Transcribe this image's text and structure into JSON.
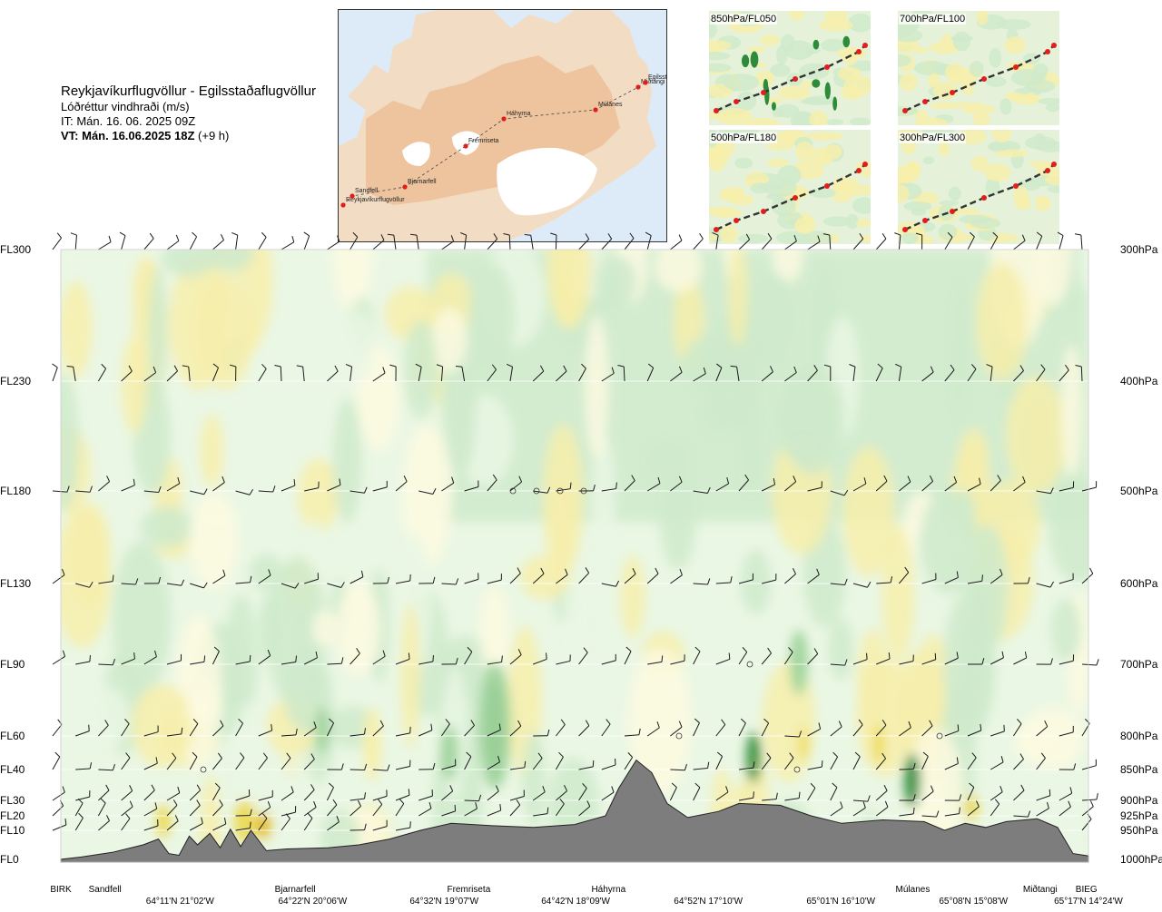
{
  "header": {
    "route": "Reykjavíkurflugvöllur - Egilsstaðaflugvöllur",
    "variable": "Lóðréttur vindhraði (m/s)",
    "issue_time": "IT: Mán. 16. 06. 2025 09Z",
    "valid_time": "VT: Mán. 16.06.2025 18Z",
    "lead": "(+9 h)"
  },
  "route_map": {
    "waypoints": [
      "Reykjavíkurflugvöllur",
      "Sandfell",
      "Bjarnarfell",
      "Fremriseta",
      "Háhyrna",
      "Múlanes",
      "Miðtangi",
      "Egilsstaðir"
    ]
  },
  "thumbnails": [
    {
      "label": "850hPa/FL050"
    },
    {
      "label": "700hPa/FL100"
    },
    {
      "label": "500hPa/FL180"
    },
    {
      "label": "300hPa/FL300"
    }
  ],
  "colors": {
    "terrain": "#7d7d7d",
    "downdraft_weak": "#fdfae0",
    "downdraft_mid": "#f7efaa",
    "downdraft_strong": "#ecd84f",
    "downdraft_max": "#e3b51f",
    "updraft_weak": "#eaf7e4",
    "updraft_mid": "#cfeacb",
    "updraft_strong": "#9fd39c",
    "updraft_max": "#2e8b3a",
    "barb": "#1a1a1a"
  },
  "chart_data": {
    "type": "heatmap",
    "title": "Lóðréttur vindhraði (m/s)",
    "xlabel": "",
    "ylabel": "",
    "left_axis_ticks": [
      {
        "label": "FL300",
        "hpa": 300
      },
      {
        "label": "FL230",
        "hpa": 400
      },
      {
        "label": "FL180",
        "hpa": 500
      },
      {
        "label": "FL130",
        "hpa": 600
      },
      {
        "label": "FL90",
        "hpa": 700
      },
      {
        "label": "FL60",
        "hpa": 800
      },
      {
        "label": "FL40",
        "hpa": 850
      },
      {
        "label": "FL30",
        "hpa": 900
      },
      {
        "label": "FL20",
        "hpa": 925
      },
      {
        "label": "FL10",
        "hpa": 950
      },
      {
        "label": "FL0",
        "hpa": 1000
      }
    ],
    "right_axis_ticks": [
      "300hPa",
      "400hPa",
      "500hPa",
      "600hPa",
      "700hPa",
      "800hPa",
      "850hPa",
      "900hPa",
      "925hPa",
      "950hPa",
      "1000hPa"
    ],
    "x_range": [
      0,
      1
    ],
    "stations": [
      {
        "name": "BIRK",
        "x": 0.0
      },
      {
        "name": "Sandfell",
        "x": 0.043
      },
      {
        "name": "Bjarnarfell",
        "x": 0.228
      },
      {
        "name": "Fremriseta",
        "x": 0.397
      },
      {
        "name": "Háhyrna",
        "x": 0.533
      },
      {
        "name": "Múlanes",
        "x": 0.829
      },
      {
        "name": "Miðtangi",
        "x": 0.953
      },
      {
        "name": "BIEG",
        "x": 0.998
      }
    ],
    "coordinates": [
      {
        "label": "64°11'N 21°02'W",
        "x": 0.116
      },
      {
        "label": "64°22'N 20°06'W",
        "x": 0.245
      },
      {
        "label": "64°32'N 19°07'W",
        "x": 0.373
      },
      {
        "label": "64°42'N 18°09'W",
        "x": 0.501
      },
      {
        "label": "64°52'N 17°10'W",
        "x": 0.63
      },
      {
        "label": "65°01'N 16°10'W",
        "x": 0.759
      },
      {
        "label": "65°08'N 15°08'W",
        "x": 0.888
      },
      {
        "label": "65°17'N 14°24'W",
        "x": 1.0
      }
    ],
    "terrain_hpa": [
      {
        "x": 0.0,
        "hpa": 1000
      },
      {
        "x": 0.02,
        "hpa": 996
      },
      {
        "x": 0.05,
        "hpa": 988
      },
      {
        "x": 0.08,
        "hpa": 975
      },
      {
        "x": 0.095,
        "hpa": 965
      },
      {
        "x": 0.105,
        "hpa": 990
      },
      {
        "x": 0.115,
        "hpa": 993
      },
      {
        "x": 0.125,
        "hpa": 960
      },
      {
        "x": 0.133,
        "hpa": 975
      },
      {
        "x": 0.145,
        "hpa": 955
      },
      {
        "x": 0.155,
        "hpa": 980
      },
      {
        "x": 0.165,
        "hpa": 948
      },
      {
        "x": 0.175,
        "hpa": 978
      },
      {
        "x": 0.185,
        "hpa": 950
      },
      {
        "x": 0.2,
        "hpa": 985
      },
      {
        "x": 0.22,
        "hpa": 982
      },
      {
        "x": 0.26,
        "hpa": 980
      },
      {
        "x": 0.29,
        "hpa": 975
      },
      {
        "x": 0.32,
        "hpa": 965
      },
      {
        "x": 0.35,
        "hpa": 950
      },
      {
        "x": 0.38,
        "hpa": 938
      },
      {
        "x": 0.42,
        "hpa": 942
      },
      {
        "x": 0.46,
        "hpa": 945
      },
      {
        "x": 0.5,
        "hpa": 940
      },
      {
        "x": 0.53,
        "hpa": 925
      },
      {
        "x": 0.543,
        "hpa": 880
      },
      {
        "x": 0.56,
        "hpa": 836
      },
      {
        "x": 0.575,
        "hpa": 855
      },
      {
        "x": 0.59,
        "hpa": 905
      },
      {
        "x": 0.61,
        "hpa": 928
      },
      {
        "x": 0.64,
        "hpa": 918
      },
      {
        "x": 0.66,
        "hpa": 905
      },
      {
        "x": 0.7,
        "hpa": 908
      },
      {
        "x": 0.73,
        "hpa": 925
      },
      {
        "x": 0.76,
        "hpa": 938
      },
      {
        "x": 0.8,
        "hpa": 932
      },
      {
        "x": 0.84,
        "hpa": 935
      },
      {
        "x": 0.86,
        "hpa": 950
      },
      {
        "x": 0.88,
        "hpa": 938
      },
      {
        "x": 0.9,
        "hpa": 945
      },
      {
        "x": 0.92,
        "hpa": 935
      },
      {
        "x": 0.95,
        "hpa": 930
      },
      {
        "x": 0.97,
        "hpa": 945
      },
      {
        "x": 0.985,
        "hpa": 990
      },
      {
        "x": 1.0,
        "hpa": 994
      }
    ],
    "levels_with_barbs_hpa": [
      300,
      400,
      500,
      600,
      700,
      800,
      850,
      900,
      925,
      950
    ]
  }
}
